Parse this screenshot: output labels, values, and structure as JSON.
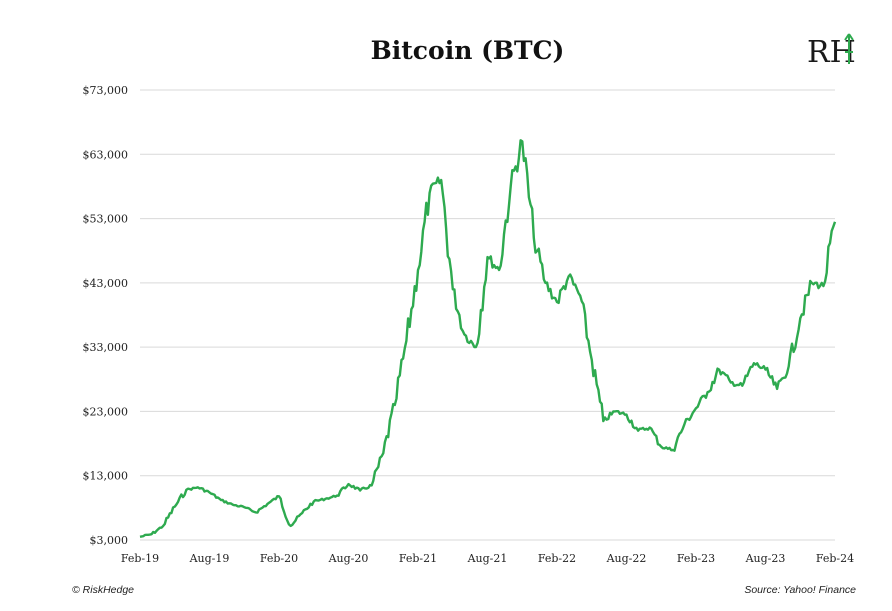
{
  "chart_data": {
    "type": "line",
    "title": "Bitcoin (BTC)",
    "xlabel": "",
    "ylabel": "",
    "ylim": [
      3000,
      73000
    ],
    "y_ticks": [
      "$73,000",
      "$63,000",
      "$53,000",
      "$43,000",
      "$33,000",
      "$23,000",
      "$13,000",
      "$3,000"
    ],
    "y_tick_values": [
      73000,
      63000,
      53000,
      43000,
      33000,
      23000,
      13000,
      3000
    ],
    "x_ticks": [
      "Feb-19",
      "Aug-19",
      "Feb-20",
      "Aug-20",
      "Feb-21",
      "Aug-21",
      "Feb-22",
      "Aug-22",
      "Feb-23",
      "Aug-23",
      "Feb-24"
    ],
    "x_tick_values": [
      "2019-02",
      "2019-08",
      "2020-02",
      "2020-08",
      "2021-02",
      "2021-08",
      "2022-02",
      "2022-08",
      "2023-02",
      "2023-08",
      "2024-02"
    ],
    "grid": "horizontal",
    "line_color": "#2eaa4f",
    "series": [
      {
        "points": [
          [
            "2019-02",
            3500
          ],
          [
            "2019-03",
            3900
          ],
          [
            "2019-04",
            5200
          ],
          [
            "2019-05",
            8200
          ],
          [
            "2019-06",
            10800
          ],
          [
            "2019-07",
            11200
          ],
          [
            "2019-08",
            10400
          ],
          [
            "2019-09",
            9200
          ],
          [
            "2019-10",
            8500
          ],
          [
            "2019-11",
            8100
          ],
          [
            "2019-12",
            7300
          ],
          [
            "2020-01",
            8600
          ],
          [
            "2020-02",
            9800
          ],
          [
            "2020-03",
            5200
          ],
          [
            "2020-04",
            7200
          ],
          [
            "2020-05",
            9000
          ],
          [
            "2020-06",
            9400
          ],
          [
            "2020-07",
            9900
          ],
          [
            "2020-08",
            11700
          ],
          [
            "2020-09",
            10700
          ],
          [
            "2020-10",
            11500
          ],
          [
            "2020-11",
            16500
          ],
          [
            "2020-12",
            24000
          ],
          [
            "2021-01",
            34000
          ],
          [
            "2021-02",
            45000
          ],
          [
            "2021-03",
            57000
          ],
          [
            "2021-04",
            59000
          ],
          [
            "2021-05",
            42000
          ],
          [
            "2021-06",
            35000
          ],
          [
            "2021-07",
            33000
          ],
          [
            "2021-08",
            47000
          ],
          [
            "2021-09",
            45000
          ],
          [
            "2021-10",
            58000
          ],
          [
            "2021-11",
            65000
          ],
          [
            "2021-12",
            50000
          ],
          [
            "2022-01",
            43000
          ],
          [
            "2022-02",
            40000
          ],
          [
            "2022-03",
            44000
          ],
          [
            "2022-04",
            41000
          ],
          [
            "2022-05",
            31000
          ],
          [
            "2022-06",
            21500
          ],
          [
            "2022-07",
            23000
          ],
          [
            "2022-08",
            22500
          ],
          [
            "2022-09",
            20000
          ],
          [
            "2022-10",
            20500
          ],
          [
            "2022-11",
            17500
          ],
          [
            "2022-12",
            17000
          ],
          [
            "2023-01",
            21000
          ],
          [
            "2023-02",
            23500
          ],
          [
            "2023-03",
            26000
          ],
          [
            "2023-04",
            29500
          ],
          [
            "2023-05",
            27500
          ],
          [
            "2023-06",
            27000
          ],
          [
            "2023-07",
            30500
          ],
          [
            "2023-08",
            29500
          ],
          [
            "2023-09",
            26500
          ],
          [
            "2023-10",
            30000
          ],
          [
            "2023-11",
            37500
          ],
          [
            "2023-12",
            43000
          ],
          [
            "2024-01",
            42500
          ],
          [
            "2024-02",
            52500
          ]
        ]
      }
    ]
  },
  "brand": {
    "logo_text": "RH"
  },
  "footer": {
    "left": "© RiskHedge",
    "right": "Source: Yahoo! Finance"
  }
}
